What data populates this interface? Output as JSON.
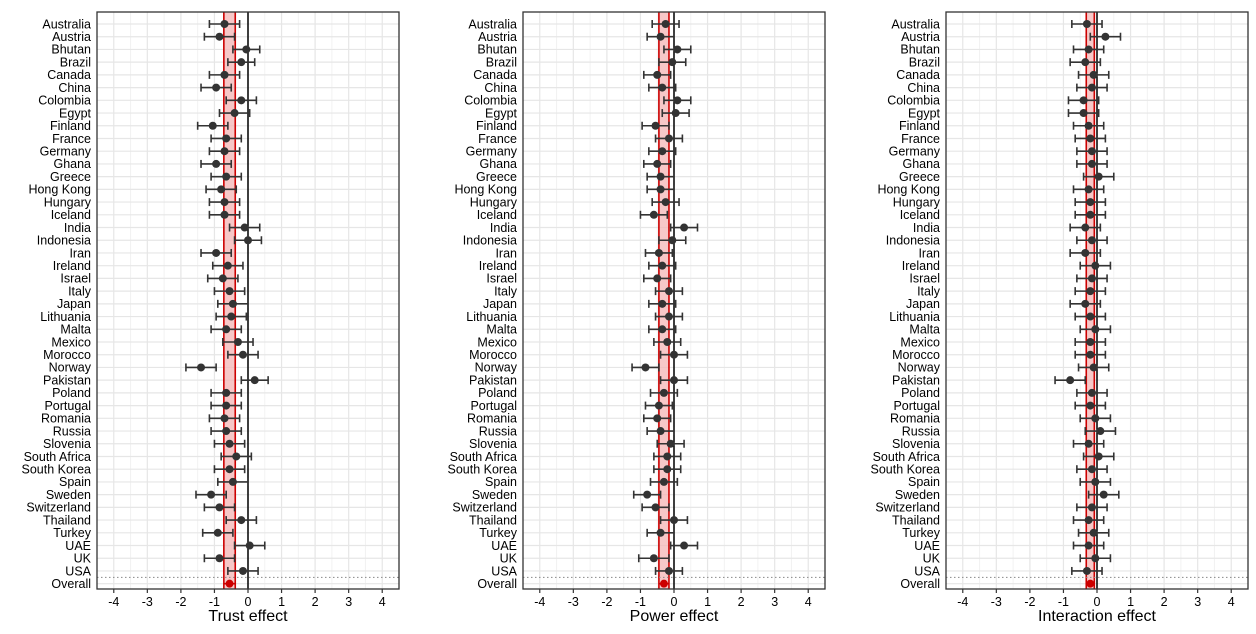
{
  "chart_data": [
    {
      "type": "scatter",
      "subtype": "forest-plot",
      "xlabel": "Trust effect",
      "xlim": [
        -4.5,
        4.5
      ],
      "xticks": [
        -4,
        -3,
        -2,
        -1,
        0,
        1,
        2,
        3,
        4
      ],
      "grid": true,
      "overall": {
        "label": "Overall",
        "estimate": -0.55,
        "lower": -0.72,
        "upper": -0.38
      },
      "categories": [
        "Australia",
        "Austria",
        "Bhutan",
        "Brazil",
        "Canada",
        "China",
        "Colombia",
        "Egypt",
        "Finland",
        "France",
        "Germany",
        "Ghana",
        "Greece",
        "Hong Kong",
        "Hungary",
        "Iceland",
        "India",
        "Indonesia",
        "Iran",
        "Ireland",
        "Israel",
        "Italy",
        "Japan",
        "Lithuania",
        "Malta",
        "Mexico",
        "Morocco",
        "Norway",
        "Pakistan",
        "Poland",
        "Portugal",
        "Romania",
        "Russia",
        "Slovenia",
        "South Africa",
        "South Korea",
        "Spain",
        "Sweden",
        "Switzerland",
        "Thailand",
        "Turkey",
        "UAE",
        "UK",
        "USA"
      ],
      "estimates": [
        -0.7,
        -0.85,
        -0.05,
        -0.2,
        -0.7,
        -0.95,
        -0.2,
        -0.4,
        -1.05,
        -0.65,
        -0.7,
        -0.95,
        -0.65,
        -0.8,
        -0.7,
        -0.7,
        -0.1,
        0.0,
        -0.95,
        -0.6,
        -0.75,
        -0.55,
        -0.45,
        -0.5,
        -0.65,
        -0.3,
        -0.15,
        -1.4,
        0.2,
        -0.65,
        -0.65,
        -0.7,
        -0.65,
        -0.55,
        -0.35,
        -0.55,
        -0.45,
        -1.1,
        -0.85,
        -0.2,
        -0.9,
        0.05,
        -0.85,
        -0.15
      ],
      "lower": [
        -1.15,
        -1.3,
        -0.45,
        -0.6,
        -1.15,
        -1.4,
        -0.65,
        -0.85,
        -1.5,
        -1.1,
        -1.15,
        -1.4,
        -1.1,
        -1.25,
        -1.15,
        -1.15,
        -0.55,
        -0.4,
        -1.4,
        -1.05,
        -1.2,
        -1.0,
        -0.9,
        -0.95,
        -1.1,
        -0.75,
        -0.6,
        -1.85,
        -0.2,
        -1.1,
        -1.1,
        -1.15,
        -1.1,
        -1.0,
        -0.8,
        -1.0,
        -0.9,
        -1.55,
        -1.3,
        -0.65,
        -1.35,
        -0.4,
        -1.3,
        -0.6
      ],
      "upper": [
        -0.25,
        -0.4,
        0.35,
        0.2,
        -0.25,
        -0.5,
        0.25,
        0.05,
        -0.6,
        -0.2,
        -0.25,
        -0.5,
        -0.2,
        -0.35,
        -0.25,
        -0.25,
        0.35,
        0.4,
        -0.5,
        -0.15,
        -0.3,
        -0.1,
        0.0,
        -0.05,
        -0.2,
        0.15,
        0.3,
        -0.95,
        0.6,
        -0.2,
        -0.2,
        -0.25,
        -0.2,
        -0.1,
        0.1,
        -0.1,
        0.0,
        -0.65,
        -0.4,
        0.25,
        -0.45,
        0.5,
        -0.4,
        0.3
      ]
    },
    {
      "type": "scatter",
      "subtype": "forest-plot",
      "xlabel": "Power effect",
      "xlim": [
        -4.5,
        4.5
      ],
      "xticks": [
        -4,
        -3,
        -2,
        -1,
        0,
        1,
        2,
        3,
        4
      ],
      "grid": true,
      "overall": {
        "label": "Overall",
        "estimate": -0.3,
        "lower": -0.45,
        "upper": -0.15
      },
      "categories": [
        "Australia",
        "Austria",
        "Bhutan",
        "Brazil",
        "Canada",
        "China",
        "Colombia",
        "Egypt",
        "Finland",
        "France",
        "Germany",
        "Ghana",
        "Greece",
        "Hong Kong",
        "Hungary",
        "Iceland",
        "India",
        "Indonesia",
        "Iran",
        "Ireland",
        "Israel",
        "Italy",
        "Japan",
        "Lithuania",
        "Malta",
        "Mexico",
        "Morocco",
        "Norway",
        "Pakistan",
        "Poland",
        "Portugal",
        "Romania",
        "Russia",
        "Slovenia",
        "South Africa",
        "South Korea",
        "Spain",
        "Sweden",
        "Switzerland",
        "Thailand",
        "Turkey",
        "UAE",
        "UK",
        "USA"
      ],
      "estimates": [
        -0.25,
        -0.4,
        0.1,
        -0.05,
        -0.5,
        -0.35,
        0.1,
        0.05,
        -0.55,
        -0.15,
        -0.35,
        -0.5,
        -0.4,
        -0.4,
        -0.25,
        -0.6,
        0.3,
        -0.05,
        -0.45,
        -0.35,
        -0.5,
        -0.15,
        -0.35,
        -0.15,
        -0.35,
        -0.2,
        0.0,
        -0.85,
        0.0,
        -0.3,
        -0.45,
        -0.5,
        -0.4,
        -0.1,
        -0.2,
        -0.2,
        -0.3,
        -0.8,
        -0.55,
        0.0,
        -0.4,
        0.3,
        -0.6,
        -0.15
      ],
      "lower": [
        -0.65,
        -0.8,
        -0.3,
        -0.45,
        -0.9,
        -0.75,
        -0.3,
        -0.35,
        -0.95,
        -0.55,
        -0.75,
        -0.9,
        -0.8,
        -0.8,
        -0.65,
        -1.0,
        -0.1,
        -0.45,
        -0.85,
        -0.75,
        -0.9,
        -0.55,
        -0.75,
        -0.55,
        -0.75,
        -0.6,
        -0.4,
        -1.25,
        -0.4,
        -0.7,
        -0.85,
        -0.9,
        -0.8,
        -0.5,
        -0.6,
        -0.6,
        -0.7,
        -1.2,
        -0.95,
        -0.4,
        -0.8,
        -0.1,
        -1.05,
        -0.55
      ],
      "upper": [
        0.15,
        0.0,
        0.5,
        0.35,
        -0.1,
        0.05,
        0.5,
        0.45,
        -0.15,
        0.25,
        0.05,
        -0.1,
        0.0,
        0.0,
        0.15,
        -0.2,
        0.7,
        0.35,
        -0.05,
        0.05,
        -0.1,
        0.25,
        0.05,
        0.25,
        0.05,
        0.2,
        0.4,
        -0.45,
        0.4,
        0.1,
        -0.05,
        -0.1,
        0.0,
        0.3,
        0.2,
        0.2,
        0.1,
        -0.4,
        -0.15,
        0.4,
        0.0,
        0.7,
        -0.15,
        0.25
      ]
    },
    {
      "type": "scatter",
      "subtype": "forest-plot",
      "xlabel": "Interaction effect",
      "xlim": [
        -4.5,
        4.5
      ],
      "xticks": [
        -4,
        -3,
        -2,
        -1,
        0,
        1,
        2,
        3,
        4
      ],
      "grid": true,
      "overall": {
        "label": "Overall",
        "estimate": -0.2,
        "lower": -0.32,
        "upper": -0.08
      },
      "categories": [
        "Australia",
        "Austria",
        "Bhutan",
        "Brazil",
        "Canada",
        "China",
        "Colombia",
        "Egypt",
        "Finland",
        "France",
        "Germany",
        "Ghana",
        "Greece",
        "Hong Kong",
        "Hungary",
        "Iceland",
        "India",
        "Indonesia",
        "Iran",
        "Ireland",
        "Israel",
        "Italy",
        "Japan",
        "Lithuania",
        "Malta",
        "Mexico",
        "Morocco",
        "Norway",
        "Pakistan",
        "Poland",
        "Portugal",
        "Romania",
        "Russia",
        "Slovenia",
        "South Africa",
        "South Korea",
        "Spain",
        "Sweden",
        "Switzerland",
        "Thailand",
        "Turkey",
        "UAE",
        "UK",
        "USA"
      ],
      "estimates": [
        -0.3,
        0.25,
        -0.25,
        -0.35,
        -0.1,
        -0.15,
        -0.4,
        -0.4,
        -0.25,
        -0.2,
        -0.15,
        -0.15,
        0.05,
        -0.25,
        -0.2,
        -0.2,
        -0.35,
        -0.15,
        -0.35,
        -0.05,
        -0.15,
        -0.2,
        -0.35,
        -0.2,
        -0.05,
        -0.2,
        -0.2,
        -0.1,
        -0.8,
        -0.15,
        -0.2,
        -0.05,
        0.1,
        -0.25,
        0.05,
        -0.15,
        -0.05,
        0.2,
        -0.15,
        -0.25,
        -0.1,
        -0.25,
        -0.05,
        -0.3
      ],
      "lower": [
        -0.75,
        -0.2,
        -0.7,
        -0.8,
        -0.55,
        -0.6,
        -0.85,
        -0.85,
        -0.7,
        -0.65,
        -0.6,
        -0.6,
        -0.4,
        -0.7,
        -0.65,
        -0.65,
        -0.8,
        -0.6,
        -0.8,
        -0.5,
        -0.6,
        -0.65,
        -0.8,
        -0.65,
        -0.5,
        -0.65,
        -0.65,
        -0.55,
        -1.25,
        -0.6,
        -0.65,
        -0.5,
        -0.35,
        -0.7,
        -0.4,
        -0.6,
        -0.5,
        -0.25,
        -0.6,
        -0.7,
        -0.55,
        -0.7,
        -0.5,
        -0.75
      ],
      "upper": [
        0.15,
        0.7,
        0.2,
        0.1,
        0.35,
        0.3,
        0.05,
        0.05,
        0.2,
        0.25,
        0.3,
        0.3,
        0.5,
        0.2,
        0.25,
        0.25,
        0.1,
        0.3,
        0.1,
        0.4,
        0.3,
        0.25,
        0.1,
        0.25,
        0.4,
        0.25,
        0.25,
        0.35,
        -0.35,
        0.3,
        0.25,
        0.4,
        0.55,
        0.2,
        0.5,
        0.3,
        0.4,
        0.65,
        0.3,
        0.2,
        0.35,
        0.2,
        0.4,
        0.15
      ]
    }
  ],
  "colors": {
    "panel_border": "#333333",
    "grid_major": "#e6e6e6",
    "grid_minor": "#f2f2f2",
    "point": "#333333",
    "overall_point": "#cc0000",
    "ci_band": "#f4b6b6",
    "ci_edge": "#cc0000",
    "zero_line": "#000000",
    "separator": "#888888"
  }
}
